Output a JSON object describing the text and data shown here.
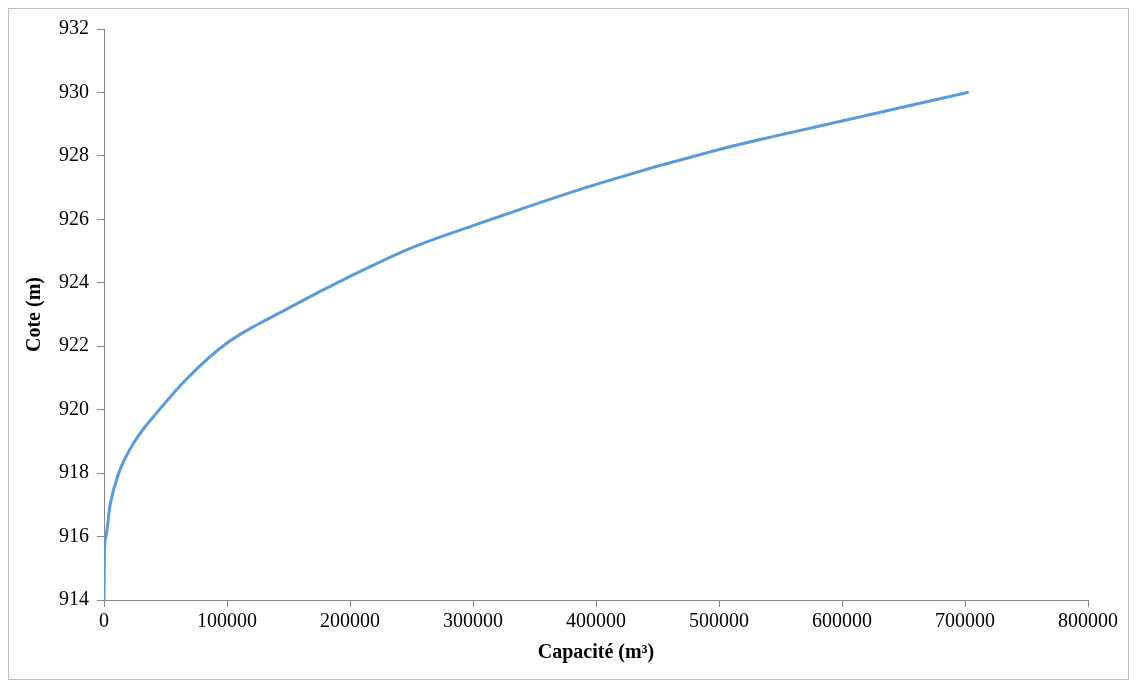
{
  "chart_data": {
    "type": "line",
    "xlabel": "Capacité (m³)",
    "ylabel": "Cote (m)",
    "series": [
      {
        "color": "#5b9bd5",
        "x": [
          0,
          300,
          1500,
          5000,
          12000,
          25000,
          45000,
          68000,
          100000,
          150000,
          200000,
          250000,
          300000,
          400000,
          500000,
          600000,
          702000
        ],
        "values": [
          914,
          915.5,
          916,
          917,
          918,
          919,
          920,
          921,
          922.1,
          923.2,
          924.2,
          925.1,
          925.8,
          927.1,
          928.2,
          929.1,
          930
        ]
      }
    ],
    "xlim": [
      0,
      800000
    ],
    "xticks": [
      0,
      100000,
      200000,
      300000,
      400000,
      500000,
      600000,
      700000,
      800000
    ],
    "ylim": [
      914,
      932
    ],
    "yticks": [
      914,
      916,
      918,
      920,
      922,
      924,
      926,
      928,
      930,
      932
    ],
    "grid": false,
    "legend": false,
    "marker": "none",
    "line_style": "solid"
  }
}
